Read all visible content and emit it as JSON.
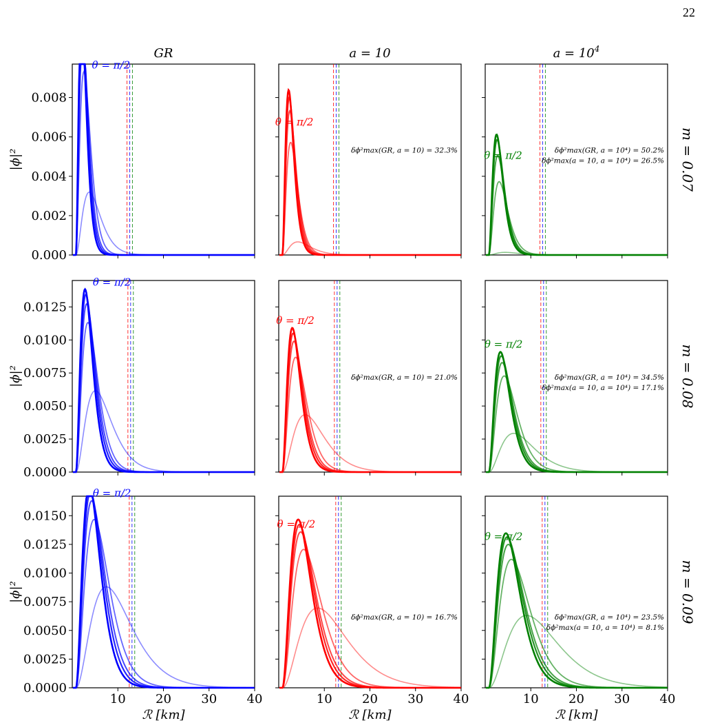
{
  "page_number": "22",
  "colors": {
    "GR": "#0000ff",
    "a=10": "#ff0000",
    "a=10^4": "#008000"
  },
  "chart_data": {
    "type": "line",
    "layout": {
      "rows": 3,
      "cols": 3
    },
    "column_titles": [
      "GR",
      "a = 10",
      "a = 10^4"
    ],
    "row_labels": [
      "m = 0.07",
      "m = 0.08",
      "m = 0.09"
    ],
    "xlabel": "ℛ [km]",
    "ylabel": "|ϕ|²",
    "xlim": [
      0,
      40
    ],
    "xticks": [
      10,
      20,
      30,
      40
    ],
    "curve_note": "theta = pi/2",
    "rows": [
      {
        "m": "m = 0.07",
        "ylim": [
          0,
          0.0097
        ],
        "yticks": [
          0.0,
          0.002,
          0.004,
          0.006,
          0.008
        ],
        "ytick_labels": [
          "0.000",
          "0.002",
          "0.004",
          "0.006",
          "0.008"
        ],
        "panels": [
          {
            "model": "GR",
            "theta_label": "θ = π/2",
            "x_start": 0.8,
            "x_end": 13.0,
            "peaks": [
              {
                "x": 2.8,
                "y": 0.0092
              },
              {
                "x": 3.0,
                "y": 0.0089
              },
              {
                "x": 3.2,
                "y": 0.0083
              },
              {
                "x": 3.6,
                "y": 0.007
              },
              {
                "x": 5.5,
                "y": 0.0024
              }
            ],
            "vlines": [
              12.0,
              12.6,
              13.2
            ],
            "annotations": []
          },
          {
            "model": "a=10",
            "theta_label": "θ = π/2",
            "x_start": 0.8,
            "x_end": 11.5,
            "peaks": [
              {
                "x": 3.0,
                "y": 0.0063
              },
              {
                "x": 3.2,
                "y": 0.006
              },
              {
                "x": 3.4,
                "y": 0.0055
              },
              {
                "x": 3.7,
                "y": 0.0043
              },
              {
                "x": 6.2,
                "y": 0.0005
              }
            ],
            "vlines": [
              12.0,
              12.6,
              13.2
            ],
            "annotations": [
              "δϕ²max(GR, a = 10) = 32.3%"
            ]
          },
          {
            "model": "a=10^4",
            "theta_label": "θ = π/2",
            "x_start": 0.8,
            "x_end": 11.0,
            "peaks": [
              {
                "x": 3.5,
                "y": 0.0046
              },
              {
                "x": 3.7,
                "y": 0.0044
              },
              {
                "x": 3.9,
                "y": 0.0038
              },
              {
                "x": 4.4,
                "y": 0.0028
              },
              {
                "x": 6.5,
                "y": 0.0001
              }
            ],
            "vlines": [
              12.0,
              12.6,
              13.2
            ],
            "annotations": [
              "δϕ²max(GR, a = 10⁴) = 50.2%",
              "δϕ²max(a = 10, a = 10⁴) = 26.5%"
            ]
          }
        ]
      },
      {
        "m": "m = 0.08",
        "ylim": [
          0,
          0.0145
        ],
        "yticks": [
          0.0,
          0.0025,
          0.005,
          0.0075,
          0.01,
          0.0125
        ],
        "ytick_labels": [
          "0.0000",
          "0.0025",
          "0.0050",
          "0.0075",
          "0.0100",
          "0.0125"
        ],
        "panels": [
          {
            "model": "GR",
            "theta_label": "θ = π/2",
            "x_start": 0.8,
            "x_end": 18.0,
            "peaks": [
              {
                "x": 3.0,
                "y": 0.0137
              },
              {
                "x": 3.2,
                "y": 0.0133
              },
              {
                "x": 3.4,
                "y": 0.0126
              },
              {
                "x": 3.7,
                "y": 0.0112
              },
              {
                "x": 5.5,
                "y": 0.0061
              }
            ],
            "vlines": [
              12.2,
              12.8,
              13.4
            ],
            "annotations": []
          },
          {
            "model": "a=10",
            "theta_label": "θ = π/2",
            "x_start": 0.8,
            "x_end": 17.0,
            "peaks": [
              {
                "x": 3.2,
                "y": 0.0108
              },
              {
                "x": 3.4,
                "y": 0.0104
              },
              {
                "x": 3.6,
                "y": 0.0098
              },
              {
                "x": 4.0,
                "y": 0.0086
              },
              {
                "x": 6.3,
                "y": 0.0043
              }
            ],
            "vlines": [
              12.2,
              12.8,
              13.4
            ],
            "annotations": [
              "δϕ²max(GR, a = 10) = 21.0%"
            ]
          },
          {
            "model": "a=10^4",
            "theta_label": "θ = π/2",
            "x_start": 0.8,
            "x_end": 16.5,
            "peaks": [
              {
                "x": 3.6,
                "y": 0.009
              },
              {
                "x": 3.8,
                "y": 0.0087
              },
              {
                "x": 4.0,
                "y": 0.0082
              },
              {
                "x": 4.5,
                "y": 0.0072
              },
              {
                "x": 6.8,
                "y": 0.0029
              }
            ],
            "vlines": [
              12.2,
              12.8,
              13.4
            ],
            "annotations": [
              "δϕ²max(GR, a = 10⁴) = 34.5%",
              "δϕ²max(a = 10, a = 10⁴) = 17.1%"
            ]
          }
        ]
      },
      {
        "m": "m = 0.09",
        "ylim": [
          0,
          0.0167
        ],
        "yticks": [
          0.0,
          0.0025,
          0.005,
          0.0075,
          0.01,
          0.0125,
          0.015
        ],
        "ytick_labels": [
          "0.0000",
          "0.0025",
          "0.0050",
          "0.0075",
          "0.0100",
          "0.0125",
          "0.0150"
        ],
        "panels": [
          {
            "model": "GR",
            "theta_label": "θ = π/2",
            "x_start": 0.8,
            "x_end": 32.0,
            "peaks": [
              {
                "x": 3.0,
                "y": 0.0162
              },
              {
                "x": 3.2,
                "y": 0.0157
              },
              {
                "x": 3.4,
                "y": 0.015
              },
              {
                "x": 3.8,
                "y": 0.0135
              },
              {
                "x": 5.8,
                "y": 0.0081
              }
            ],
            "vlines": [
              12.5,
              13.1,
              13.7
            ],
            "annotations": []
          },
          {
            "model": "a=10",
            "theta_label": "θ = π/2",
            "x_start": 0.8,
            "x_end": 32.0,
            "peaks": [
              {
                "x": 3.4,
                "y": 0.0135
              },
              {
                "x": 3.6,
                "y": 0.0131
              },
              {
                "x": 3.8,
                "y": 0.0125
              },
              {
                "x": 4.3,
                "y": 0.0111
              },
              {
                "x": 6.6,
                "y": 0.0064
              }
            ],
            "vlines": [
              12.5,
              13.1,
              13.7
            ],
            "annotations": [
              "δϕ²max(GR, a = 10) = 16.7%"
            ]
          },
          {
            "model": "a=10^4",
            "theta_label": "θ = π/2",
            "x_start": 0.8,
            "x_end": 32.0,
            "peaks": [
              {
                "x": 3.6,
                "y": 0.0124
              },
              {
                "x": 3.8,
                "y": 0.0121
              },
              {
                "x": 4.0,
                "y": 0.0115
              },
              {
                "x": 4.5,
                "y": 0.0103
              },
              {
                "x": 7.0,
                "y": 0.0058
              }
            ],
            "vlines": [
              12.5,
              13.1,
              13.7
            ],
            "annotations": [
              "δϕ²max(GR, a = 10⁴) = 23.5%",
              "δϕ²max(a = 10, a = 10⁴) = 8.1%"
            ]
          }
        ]
      }
    ]
  }
}
